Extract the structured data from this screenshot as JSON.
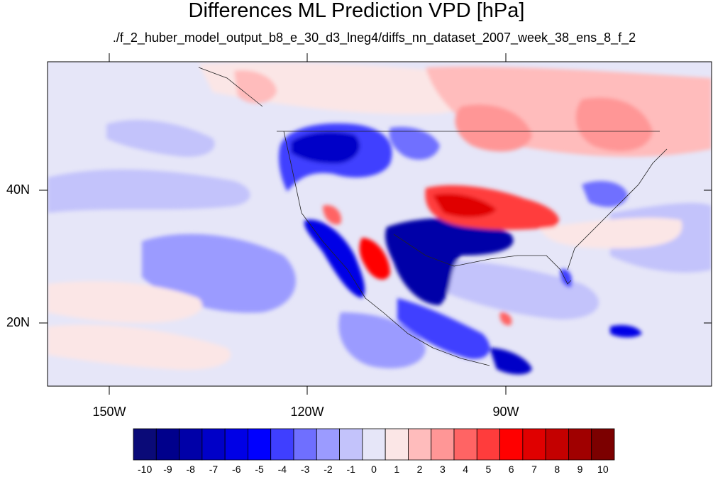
{
  "title": "Differences ML Prediction VPD [hPa]",
  "subtitle": "./f_2_huber_model_output_b8_e_30_d3_lneg4/diffs_nn_dataset_2007_week_38_ens_8_f_2",
  "axes": {
    "lon_labels": [
      "150W",
      "120W",
      "90W"
    ],
    "lat_labels": [
      "40N",
      "20N"
    ]
  },
  "colorbar": {
    "labels": [
      "-10",
      "-9",
      "-8",
      "-7",
      "-6",
      "-5",
      "-4",
      "-3",
      "-2",
      "-1",
      "0",
      "1",
      "2",
      "3",
      "4",
      "5",
      "6",
      "7",
      "8",
      "9",
      "10"
    ],
    "colors": [
      "#0a0a78",
      "#00008c",
      "#0000a8",
      "#0000c8",
      "#0000e6",
      "#0000ff",
      "#3f3fff",
      "#6f6fff",
      "#9b9bff",
      "#c3c3fb",
      "#e6e6f8",
      "#fbe6e6",
      "#ffbcbc",
      "#ff9696",
      "#ff6464",
      "#ff3c3c",
      "#ff0000",
      "#e00000",
      "#c40000",
      "#a00000",
      "#7c0000"
    ]
  },
  "colors": {
    "ocean_base": "#e6e6f8",
    "strong_blue": "#0000c8",
    "strong_red": "#ff3c3c"
  }
}
